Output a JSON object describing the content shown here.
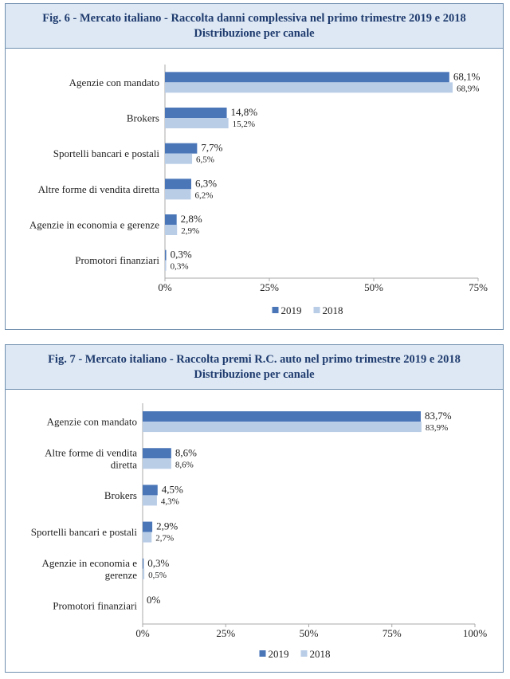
{
  "colors": {
    "y2019": "#4a76b8",
    "y2018": "#b9cde7",
    "axis": "#a8a8a8",
    "title": "#1f3b6e"
  },
  "figures": [
    {
      "title_line1": "Fig. 6 - Mercato italiano - Raccolta danni complessiva nel primo trimestre 2019 e 2018",
      "title_line2": "Distribuzione per canale"
    },
    {
      "title_line1": "Fig. 7 - Mercato italiano - Raccolta premi R.C. auto nel primo trimestre 2019 e 2018",
      "title_line2": "Distribuzione per canale"
    }
  ],
  "chart_data": [
    {
      "type": "bar",
      "orientation": "horizontal",
      "categories": [
        [
          "Agenzie con mandato"
        ],
        [
          "Brokers"
        ],
        [
          "Sportelli bancari e postali"
        ],
        [
          "Altre forme di vendita diretta"
        ],
        [
          "Agenzie in economia e gerenze"
        ],
        [
          "Promotori finanziari"
        ]
      ],
      "series": [
        {
          "name": "2019",
          "values": [
            68.1,
            14.8,
            7.7,
            6.3,
            2.8,
            0.3
          ],
          "labels": [
            "68,1%",
            "14,8%",
            "7,7%",
            "6,3%",
            "2,8%",
            "0,3%"
          ]
        },
        {
          "name": "2018",
          "values": [
            68.9,
            15.2,
            6.5,
            6.2,
            2.9,
            0.3
          ],
          "labels": [
            "68,9%",
            "15,2%",
            "6,5%",
            "6,2%",
            "2,9%",
            "0,3%"
          ]
        }
      ],
      "xlim": [
        0,
        75
      ],
      "ticks": [
        0,
        25,
        50,
        75
      ],
      "tick_labels": [
        "0%",
        "25%",
        "50%",
        "75%"
      ],
      "legend": "bottom",
      "grid": false
    },
    {
      "type": "bar",
      "orientation": "horizontal",
      "categories": [
        [
          "Agenzie con mandato"
        ],
        [
          "Altre forme di vendita",
          "diretta"
        ],
        [
          "Brokers"
        ],
        [
          "Sportelli bancari e postali"
        ],
        [
          "Agenzie in economia e",
          "gerenze"
        ],
        [
          "Promotori finanziari"
        ]
      ],
      "series": [
        {
          "name": "2019",
          "values": [
            83.7,
            8.6,
            4.5,
            2.9,
            0.3,
            0
          ],
          "labels": [
            "83,7%",
            "8,6%",
            "4,5%",
            "2,9%",
            "0,3%",
            "0%"
          ]
        },
        {
          "name": "2018",
          "values": [
            83.9,
            8.6,
            4.3,
            2.7,
            0.5,
            null
          ],
          "labels": [
            "83,9%",
            "8,6%",
            "4,3%",
            "2,7%",
            "0,5%",
            ""
          ]
        }
      ],
      "xlim": [
        0,
        100
      ],
      "ticks": [
        0,
        25,
        50,
        75,
        100
      ],
      "tick_labels": [
        "0%",
        "25%",
        "50%",
        "75%",
        "100%"
      ],
      "legend": "bottom",
      "grid": false
    }
  ]
}
